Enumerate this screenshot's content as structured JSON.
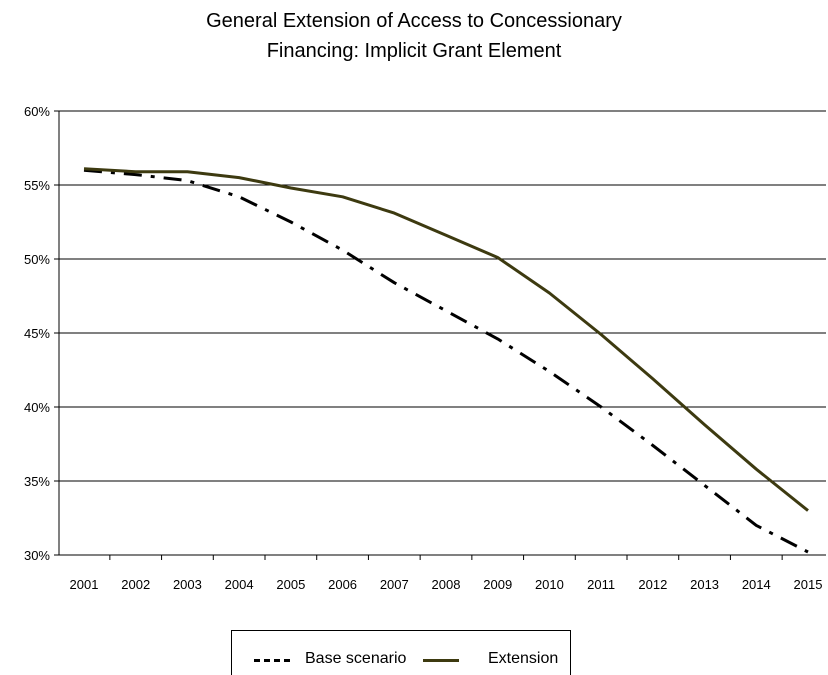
{
  "chart_data": {
    "type": "line",
    "title": [
      "General Extension of Access to Concessionary",
      "Financing: Implicit Grant Element"
    ],
    "xlabel": "",
    "ylabel": "",
    "categories": [
      "2001",
      "2002",
      "2003",
      "2004",
      "2005",
      "2006",
      "2007",
      "2008",
      "2009",
      "2010",
      "2011",
      "2012",
      "2013",
      "2014",
      "2015"
    ],
    "ylim": [
      30,
      60
    ],
    "yticks": [
      30,
      35,
      40,
      45,
      50,
      55,
      60
    ],
    "ytick_suffix": "%",
    "grid": "horizontal",
    "legend_position": "bottom",
    "series": [
      {
        "name": "Base scenario",
        "style": "dash-dot",
        "color": "#000000",
        "values": [
          56.0,
          55.7,
          55.3,
          54.2,
          52.5,
          50.6,
          48.4,
          46.5,
          44.6,
          42.4,
          40.0,
          37.4,
          34.7,
          32.0,
          30.2
        ]
      },
      {
        "name": "Extension",
        "style": "solid",
        "color": "#3d3a10",
        "values": [
          56.1,
          55.9,
          55.9,
          55.5,
          54.8,
          54.2,
          53.1,
          51.6,
          50.1,
          47.7,
          44.9,
          41.9,
          38.8,
          35.8,
          33.0
        ]
      }
    ]
  }
}
